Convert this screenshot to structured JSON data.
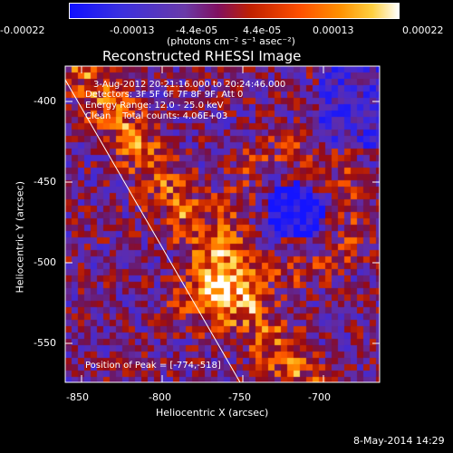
{
  "colorbar": {
    "ticks": [
      "-0.00022",
      "-0.00013",
      "-4.4e-05",
      "4.4e-05",
      "0.00013",
      "0.00022"
    ],
    "unit_label": "(photons cm⁻² s⁻¹ asec⁻²)"
  },
  "title": "Reconstructed RHESSI Image",
  "info": {
    "time": "3-Aug-2012 20:21:16.000 to 20:24:46.000",
    "detectors": "Detectors: 3F 5F 6F 7F 8F 9F, Att 0",
    "energy": "Energy Range: 12.0 - 25.0 keV",
    "clean": "Clean    Total counts: 4.06E+03",
    "peak": "Position of Peak = [-774,-518]"
  },
  "axes": {
    "xlabel": "Heliocentric X (arcsec)",
    "ylabel": "Heliocentric Y (arcsec)",
    "xticks": [
      "-850",
      "-800",
      "-750",
      "-700"
    ],
    "yticks": [
      "-400",
      "-450",
      "-500",
      "-550"
    ],
    "xlim": [
      -860,
      -666
    ],
    "ylim": [
      -573,
      -377
    ]
  },
  "footer": {
    "timestamp": "8-May-2014 14:29"
  }
}
